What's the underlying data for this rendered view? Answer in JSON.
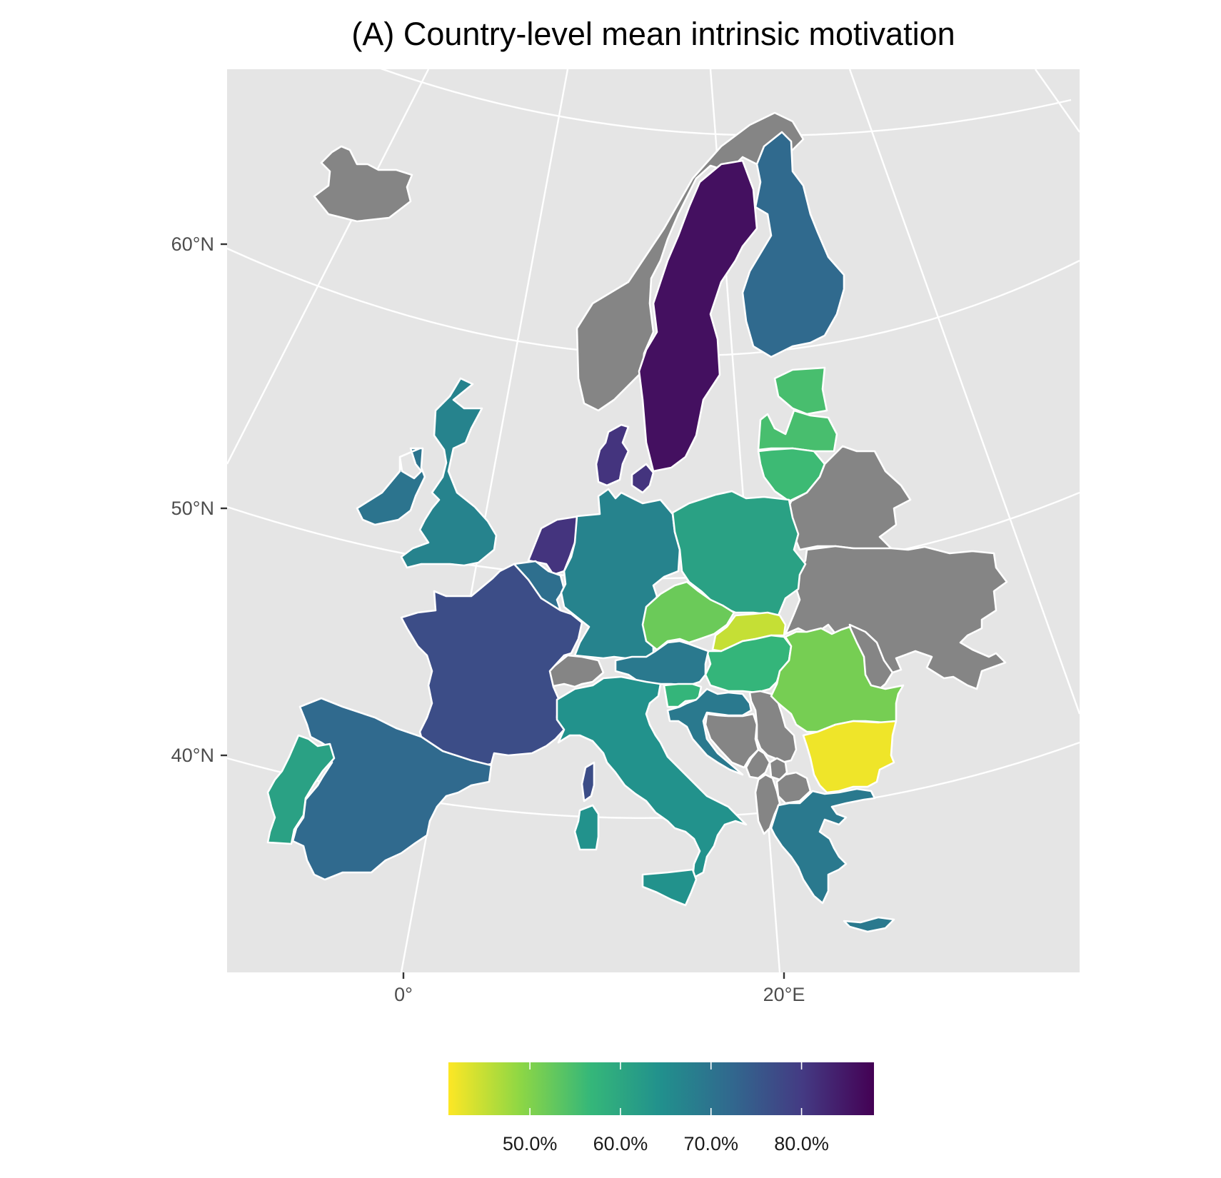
{
  "title": "(A) Country-level mean intrinsic motivation",
  "axes": {
    "y_ticks": [
      "60°N",
      "50°N",
      "40°N"
    ],
    "x_ticks": [
      "0°",
      "20°E"
    ]
  },
  "colors": {
    "panel_background": "#e5e5e5",
    "graticule": "#ffffff",
    "no_data": "#858585",
    "scale": [
      "#fde725",
      "#8fd744",
      "#35b779",
      "#21908d",
      "#31688e",
      "#443a83",
      "#440154"
    ]
  },
  "legend": {
    "placement": "bottom",
    "tick_labels": [
      "50.0%",
      "60.0%",
      "70.0%",
      "80.0%"
    ],
    "tick_values": [
      0.5,
      0.6,
      0.7,
      0.8
    ],
    "range": [
      0.41,
      0.88
    ]
  },
  "countries": [
    {
      "id": "iceland",
      "value": null
    },
    {
      "id": "norway",
      "value": null
    },
    {
      "id": "sweden",
      "value": 0.86
    },
    {
      "id": "finland",
      "value": 0.72
    },
    {
      "id": "estonia",
      "value": 0.55
    },
    {
      "id": "latvia",
      "value": 0.55
    },
    {
      "id": "lithuania",
      "value": 0.56
    },
    {
      "id": "belarus",
      "value": null
    },
    {
      "id": "ukraine",
      "value": null
    },
    {
      "id": "moldova",
      "value": null
    },
    {
      "id": "ireland",
      "value": 0.7
    },
    {
      "id": "united-kingdom",
      "value": 0.67
    },
    {
      "id": "denmark",
      "value": 0.81
    },
    {
      "id": "netherlands",
      "value": 0.81
    },
    {
      "id": "belgium",
      "value": 0.71
    },
    {
      "id": "germany",
      "value": 0.67
    },
    {
      "id": "poland",
      "value": 0.61
    },
    {
      "id": "czechia",
      "value": 0.52
    },
    {
      "id": "slovakia",
      "value": 0.45
    },
    {
      "id": "hungary",
      "value": 0.57
    },
    {
      "id": "austria",
      "value": 0.69
    },
    {
      "id": "switzerland",
      "value": null
    },
    {
      "id": "france",
      "value": 0.77
    },
    {
      "id": "spain",
      "value": 0.72
    },
    {
      "id": "portugal",
      "value": 0.61
    },
    {
      "id": "italy",
      "value": 0.64
    },
    {
      "id": "slovenia",
      "value": 0.57
    },
    {
      "id": "croatia",
      "value": 0.69
    },
    {
      "id": "bosnia",
      "value": null
    },
    {
      "id": "serbia",
      "value": null
    },
    {
      "id": "montenegro",
      "value": null
    },
    {
      "id": "kosovo",
      "value": null
    },
    {
      "id": "north-macedonia",
      "value": null
    },
    {
      "id": "albania",
      "value": null
    },
    {
      "id": "romania",
      "value": 0.51
    },
    {
      "id": "bulgaria",
      "value": 0.42
    },
    {
      "id": "greece",
      "value": 0.69
    },
    {
      "id": "corsica",
      "value": 0.77
    },
    {
      "id": "sardinia",
      "value": 0.64
    },
    {
      "id": "sicily",
      "value": 0.64
    },
    {
      "id": "crete",
      "value": 0.69
    }
  ]
}
